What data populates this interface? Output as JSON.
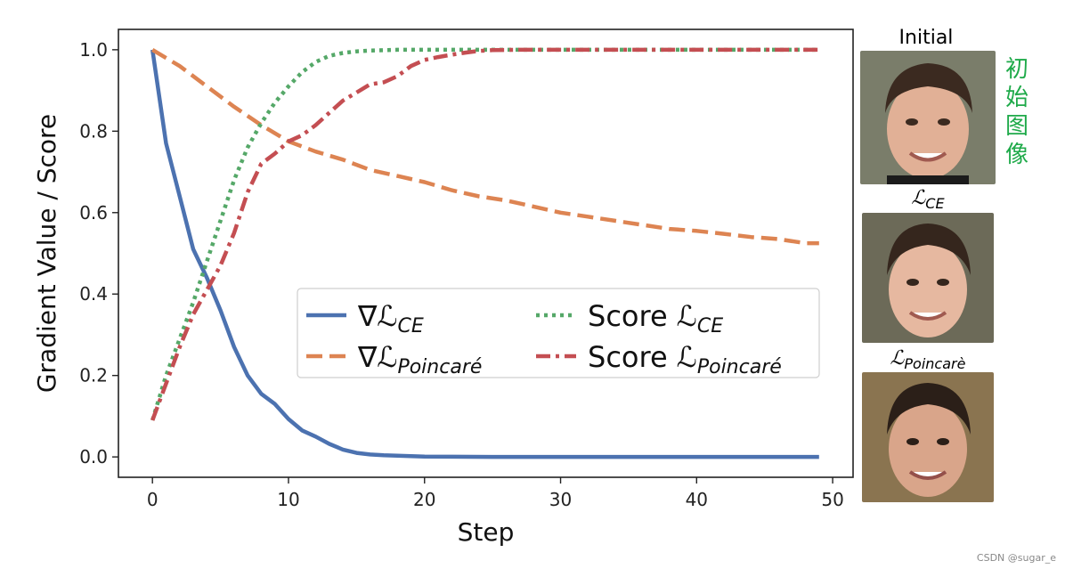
{
  "chart_data": {
    "type": "line",
    "xlabel": "Step",
    "ylabel": "Gradient Value / Score",
    "xlim": [
      -2.5,
      51.5
    ],
    "ylim": [
      -0.05,
      1.05
    ],
    "xticks": [
      0,
      10,
      20,
      30,
      40,
      50
    ],
    "yticks": [
      0.0,
      0.2,
      0.4,
      0.6,
      0.8,
      1.0
    ],
    "xtick_labels": [
      "0",
      "10",
      "20",
      "30",
      "40",
      "50"
    ],
    "ytick_labels": [
      "0.0",
      "0.2",
      "0.4",
      "0.6",
      "0.8",
      "1.0"
    ],
    "legend_position": "center-right",
    "series": [
      {
        "name": "∇ℒCE",
        "prefix": "∇ℒ",
        "sub": "CE",
        "color": "#4c72b0",
        "style": "solid",
        "x": [
          0,
          1,
          2,
          3,
          4,
          5,
          6,
          7,
          8,
          9,
          10,
          11,
          12,
          13,
          14,
          15,
          16,
          17,
          18,
          19,
          20,
          22,
          25,
          30,
          35,
          40,
          45,
          49
        ],
        "y": [
          1.0,
          0.77,
          0.64,
          0.51,
          0.44,
          0.36,
          0.27,
          0.2,
          0.155,
          0.13,
          0.093,
          0.065,
          0.05,
          0.032,
          0.018,
          0.01,
          0.006,
          0.004,
          0.003,
          0.002,
          0.001,
          0.0005,
          0.0,
          0.0,
          0.0,
          0.0,
          0.0,
          0.0
        ]
      },
      {
        "name": "∇ℒPoincaré",
        "prefix": "∇ℒ",
        "sub": "Poincaré",
        "color": "#dd8452",
        "style": "dashed",
        "x": [
          0,
          2,
          4,
          6,
          8,
          10,
          12,
          14,
          16,
          18,
          20,
          22,
          24,
          26,
          28,
          30,
          32,
          34,
          36,
          38,
          40,
          42,
          44,
          46,
          48,
          49
        ],
        "y": [
          1.0,
          0.96,
          0.91,
          0.86,
          0.815,
          0.775,
          0.75,
          0.73,
          0.705,
          0.69,
          0.675,
          0.655,
          0.64,
          0.63,
          0.615,
          0.6,
          0.59,
          0.58,
          0.57,
          0.56,
          0.555,
          0.548,
          0.54,
          0.535,
          0.525,
          0.525
        ]
      },
      {
        "name": "Score ℒCE",
        "prefix": "Score ℒ",
        "sub": "CE",
        "color": "#55a868",
        "style": "dotted",
        "x": [
          0,
          1,
          2,
          3,
          4,
          5,
          6,
          7,
          8,
          9,
          10,
          11,
          12,
          13,
          14,
          15,
          16,
          17,
          18,
          20,
          25,
          30,
          35,
          40,
          45,
          49
        ],
        "y": [
          0.09,
          0.2,
          0.29,
          0.38,
          0.48,
          0.58,
          0.68,
          0.76,
          0.82,
          0.87,
          0.91,
          0.945,
          0.97,
          0.985,
          0.992,
          0.996,
          0.998,
          0.999,
          1.0,
          1.0,
          1.0,
          1.0,
          1.0,
          1.0,
          1.0,
          1.0
        ]
      },
      {
        "name": "Score ℒPoincaré",
        "prefix": "Score ℒ",
        "sub": "Poincaré",
        "color": "#c44e52",
        "style": "dashdot",
        "x": [
          0,
          1,
          2,
          3,
          4,
          5,
          6,
          7,
          8,
          9,
          10,
          11,
          12,
          13,
          14,
          15,
          16,
          17,
          18,
          19,
          20,
          21,
          22,
          23,
          24,
          25,
          27,
          30,
          35,
          40,
          45,
          49
        ],
        "y": [
          0.09,
          0.18,
          0.27,
          0.35,
          0.41,
          0.47,
          0.55,
          0.65,
          0.72,
          0.745,
          0.775,
          0.79,
          0.815,
          0.845,
          0.875,
          0.895,
          0.915,
          0.92,
          0.935,
          0.96,
          0.975,
          0.982,
          0.988,
          0.993,
          0.997,
          0.999,
          1.0,
          1.0,
          1.0,
          1.0,
          1.0,
          1.0
        ]
      }
    ]
  },
  "faces": {
    "initial_label": "Initial",
    "ce_label_prefix": "ℒ",
    "ce_label_sub": "CE",
    "poincare_label_prefix": "ℒ",
    "poincare_label_sub": "Poincarè"
  },
  "annotation": {
    "chars": [
      "初",
      "始",
      "图",
      "像"
    ]
  },
  "watermark": "CSDN @sugar_e"
}
